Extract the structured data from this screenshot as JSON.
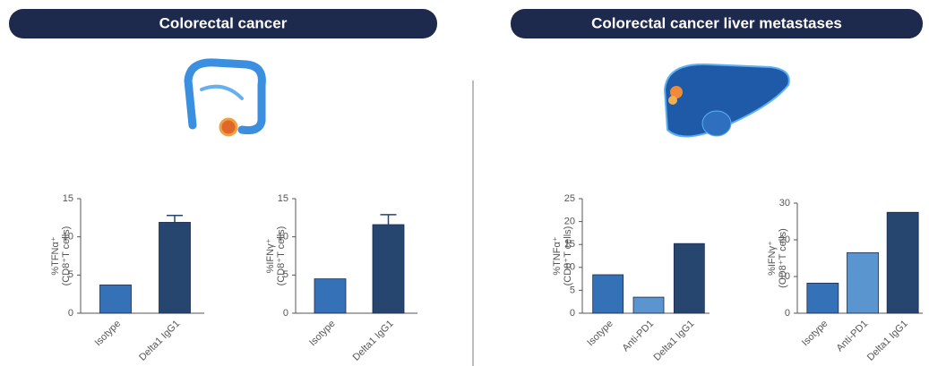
{
  "panels": [
    {
      "title": "Colorectal cancer"
    },
    {
      "title": "Colorectal cancer liver metastases"
    }
  ],
  "chart_data": [
    {
      "type": "bar",
      "ylabel": [
        "%TFNα⁺",
        "(CD8⁺T cells)"
      ],
      "categories": [
        "Isotype",
        "Delta1 IgG1"
      ],
      "values": [
        3.7,
        11.9
      ],
      "errors": [
        null,
        0.9
      ],
      "colors": [
        "#3471b6",
        "#27466f"
      ],
      "ylim": [
        0,
        15
      ],
      "yticks": [
        0,
        5,
        10,
        15
      ]
    },
    {
      "type": "bar",
      "ylabel": [
        "%IFNγ⁺",
        "(CD8⁺T cells)"
      ],
      "categories": [
        "Isotype",
        "Delta1 IgG1"
      ],
      "values": [
        4.5,
        11.6
      ],
      "errors": [
        null,
        1.3
      ],
      "colors": [
        "#3471b6",
        "#27466f"
      ],
      "ylim": [
        0,
        15
      ],
      "yticks": [
        0,
        5,
        10,
        15
      ]
    },
    {
      "type": "bar",
      "ylabel": [
        "%TNFα⁺",
        "(CD8⁺T cells)"
      ],
      "categories": [
        "Isotype",
        "Anti-PD1",
        "Delta1 IgG1"
      ],
      "values": [
        8.4,
        3.5,
        15.2
      ],
      "colors": [
        "#3471b6",
        "#5b95d0",
        "#27466f"
      ],
      "ylim": [
        0,
        25
      ],
      "yticks": [
        0,
        5,
        10,
        15,
        20,
        25
      ]
    },
    {
      "type": "bar",
      "ylabel": [
        "%IFNγ⁺",
        "(CD8⁺T cells)"
      ],
      "categories": [
        "Isotype",
        "Anti-PD1",
        "Delta1 IgG1"
      ],
      "values": [
        8.2,
        16.5,
        27.5
      ],
      "colors": [
        "#3471b6",
        "#5b95d0",
        "#27466f"
      ],
      "ylim": [
        0,
        30
      ],
      "yticks": [
        0,
        10,
        20,
        30
      ]
    }
  ]
}
